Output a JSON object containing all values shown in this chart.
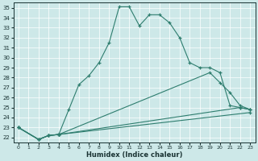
{
  "xlabel": "Humidex (Indice chaleur)",
  "background_color": "#cde8e8",
  "grid_color": "#b8d8d8",
  "line_color": "#2e7d6e",
  "xlim": [
    -0.5,
    23.5
  ],
  "ylim": [
    21.5,
    35.5
  ],
  "xticks": [
    0,
    1,
    2,
    3,
    4,
    5,
    6,
    7,
    8,
    9,
    10,
    11,
    12,
    13,
    14,
    15,
    16,
    17,
    18,
    19,
    20,
    21,
    22,
    23
  ],
  "yticks": [
    22,
    23,
    24,
    25,
    26,
    27,
    28,
    29,
    30,
    31,
    32,
    33,
    34,
    35
  ],
  "series1_x": [
    0,
    2,
    3,
    4,
    5,
    6,
    7,
    8,
    9,
    10,
    11,
    12,
    13,
    14,
    15,
    16,
    17,
    18,
    19,
    20,
    21,
    22,
    23
  ],
  "series1_y": [
    23.0,
    21.8,
    22.2,
    22.3,
    24.8,
    27.3,
    28.2,
    29.5,
    31.5,
    35.1,
    35.1,
    33.2,
    34.3,
    34.3,
    33.5,
    32.0,
    29.5,
    29.0,
    29.0,
    28.5,
    25.2,
    25.0,
    24.8
  ],
  "series2_x": [
    0,
    2,
    3,
    4,
    19,
    20,
    21,
    22,
    23
  ],
  "series2_y": [
    23.0,
    21.8,
    22.2,
    22.3,
    28.5,
    27.5,
    26.5,
    25.2,
    24.8
  ],
  "series3_x": [
    0,
    2,
    3,
    4,
    22,
    23
  ],
  "series3_y": [
    23.0,
    21.8,
    22.2,
    22.3,
    25.0,
    24.8
  ],
  "series4_x": [
    0,
    2,
    3,
    4,
    23
  ],
  "series4_y": [
    23.0,
    21.8,
    22.2,
    22.3,
    24.5
  ]
}
